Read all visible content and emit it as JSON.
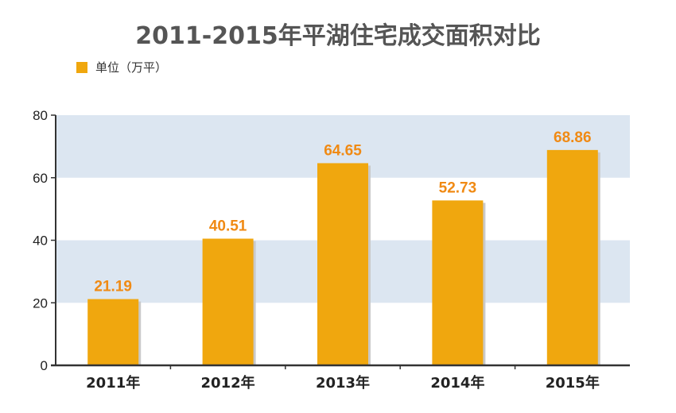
{
  "chart_data": {
    "type": "bar",
    "title": "2011-2015年平湖住宅成交面积对比",
    "legend": "单位（万平）",
    "categories": [
      "2011年",
      "2012年",
      "2013年",
      "2014年",
      "2015年"
    ],
    "series": [
      {
        "name": "单位（万平）",
        "values": [
          21.19,
          40.51,
          64.65,
          52.73,
          68.86
        ]
      }
    ],
    "value_labels": [
      "21.19",
      "40.51",
      "64.65",
      "52.73",
      "68.86"
    ],
    "ylim": [
      0,
      80
    ],
    "yticks": [
      0,
      20,
      40,
      60,
      80
    ],
    "ytick_labels": [
      "0",
      "20",
      "40",
      "60",
      "80"
    ],
    "xlabel": "",
    "ylabel": "",
    "legend_position": "top-left",
    "bands": "alternating light-blue stripes 20-40 and 60-80... (visual)",
    "colors": {
      "bar": "#f0a70e",
      "bar_shadow": "#c9c9c9",
      "band": "#dce6f1",
      "value_label": "#f08a14"
    }
  }
}
